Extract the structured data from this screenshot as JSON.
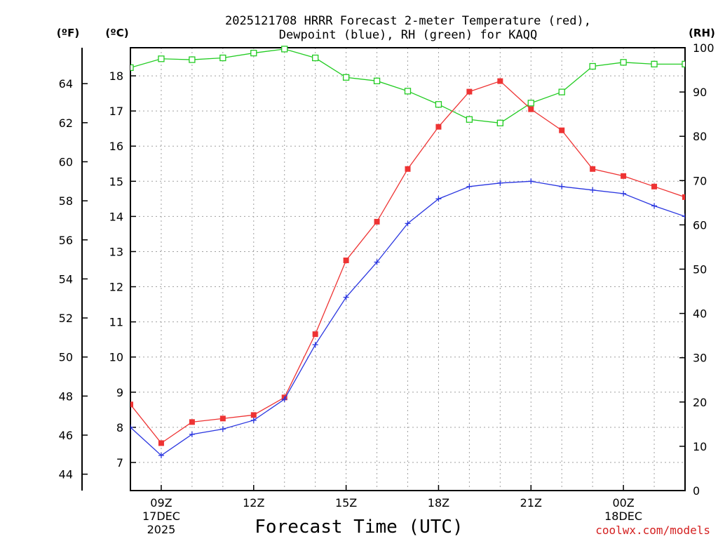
{
  "colors": {
    "temperature": "#ee3333",
    "dewpoint": "#2a36e0",
    "rh": "#22cc22",
    "grid": "#a0a0a0",
    "credit": "#d42020"
  },
  "header": {
    "title_line1": "2025121708 HRRR Forecast 2-meter Temperature (red),",
    "title_line2": "Dewpoint (blue), RH (green) for KAQQ"
  },
  "axes": {
    "f_label": "(ºF)",
    "c_label": "(ºC)",
    "rh_label": "(RH)",
    "x_label": "Forecast Time (UTC)"
  },
  "credit": "coolwx.com/models",
  "chart_data": {
    "type": "line",
    "title": "2025121708 HRRR Forecast 2-meter Temperature (red), Dewpoint (blue), RH (green) for KAQQ",
    "xlabel": "Forecast Time (UTC)",
    "ylabel_left_f": "(ºF)",
    "ylabel_left_c": "(ºC)",
    "ylabel_right": "(RH)",
    "x_hours": [
      8,
      9,
      10,
      11,
      12,
      13,
      14,
      15,
      16,
      17,
      18,
      19,
      20,
      21,
      22,
      23,
      24,
      25,
      26
    ],
    "xlim": [
      8,
      26
    ],
    "ylim_c": [
      6.2,
      18.8
    ],
    "ylim_rh": [
      0,
      100
    ],
    "y_ticks_c": [
      7,
      8,
      9,
      10,
      11,
      12,
      13,
      14,
      15,
      16,
      17,
      18
    ],
    "y_ticks_f": [
      44,
      46,
      48,
      50,
      52,
      54,
      56,
      58,
      60,
      62,
      64
    ],
    "y_ticks_rh": [
      0,
      10,
      20,
      30,
      40,
      50,
      60,
      70,
      80,
      90,
      100
    ],
    "x_ticks": [
      {
        "hour": 9,
        "label": "09Z",
        "sub1": "17DEC",
        "sub2": "2025"
      },
      {
        "hour": 12,
        "label": "12Z",
        "sub1": "",
        "sub2": ""
      },
      {
        "hour": 15,
        "label": "15Z",
        "sub1": "",
        "sub2": ""
      },
      {
        "hour": 18,
        "label": "18Z",
        "sub1": "",
        "sub2": ""
      },
      {
        "hour": 21,
        "label": "21Z",
        "sub1": "",
        "sub2": ""
      },
      {
        "hour": 24,
        "label": "00Z",
        "sub1": "18DEC",
        "sub2": ""
      }
    ],
    "series": [
      {
        "name": "Temperature (red)",
        "units": "C",
        "values": [
          8.65,
          7.55,
          8.15,
          8.25,
          8.35,
          8.85,
          10.65,
          12.75,
          13.85,
          15.35,
          16.55,
          17.55,
          17.85,
          17.05,
          16.45,
          15.35,
          15.15,
          14.85,
          14.55
        ]
      },
      {
        "name": "Dewpoint (blue)",
        "units": "C",
        "values": [
          8.0,
          7.2,
          7.8,
          7.95,
          8.2,
          8.8,
          10.35,
          11.7,
          12.7,
          13.8,
          14.5,
          14.85,
          14.95,
          15.0,
          14.85,
          14.75,
          14.65,
          14.3,
          14.0
        ]
      },
      {
        "name": "RH (green)",
        "units": "%",
        "values": [
          95.5,
          97.5,
          97.3,
          97.7,
          98.8,
          99.7,
          97.7,
          93.3,
          92.5,
          90.2,
          87.2,
          83.8,
          83.0,
          87.5,
          90.0,
          95.8,
          96.7,
          96.3,
          96.3
        ]
      }
    ]
  }
}
